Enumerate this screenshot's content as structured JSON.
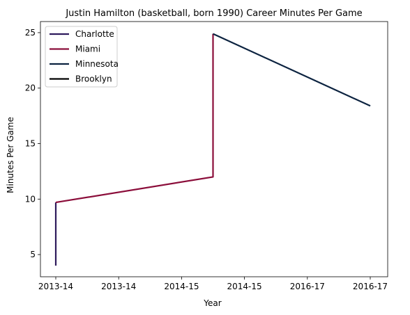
{
  "chart_data": {
    "type": "line",
    "title": "Justin Hamilton (basketball, born 1990) Career Minutes Per Game",
    "xlabel": "Year",
    "ylabel": "Minutes Per Game",
    "x_tick_labels": [
      "2013-14",
      "2013-14",
      "2014-15",
      "2014-15",
      "2016-17",
      "2016-17"
    ],
    "y_ticks": [
      5,
      10,
      15,
      20,
      25
    ],
    "ylim": [
      3,
      26
    ],
    "grid": false,
    "legend_position": "top-left",
    "series": [
      {
        "name": "Charlotte",
        "color": "#2e1a5c",
        "points": [
          {
            "x": 0,
            "y": 4.0
          },
          {
            "x": 0,
            "y": 9.7
          }
        ]
      },
      {
        "name": "Miami",
        "color": "#8b0d3a",
        "points": [
          {
            "x": 0,
            "y": 9.7
          },
          {
            "x": 2.5,
            "y": 12.0
          },
          {
            "x": 2.5,
            "y": 24.9
          }
        ]
      },
      {
        "name": "Minnesota",
        "color": "#0c2340",
        "points": [
          {
            "x": 2.5,
            "y": 24.9
          },
          {
            "x": 5,
            "y": 18.4
          }
        ]
      },
      {
        "name": "Brooklyn",
        "color": "#000000",
        "points": []
      }
    ]
  }
}
